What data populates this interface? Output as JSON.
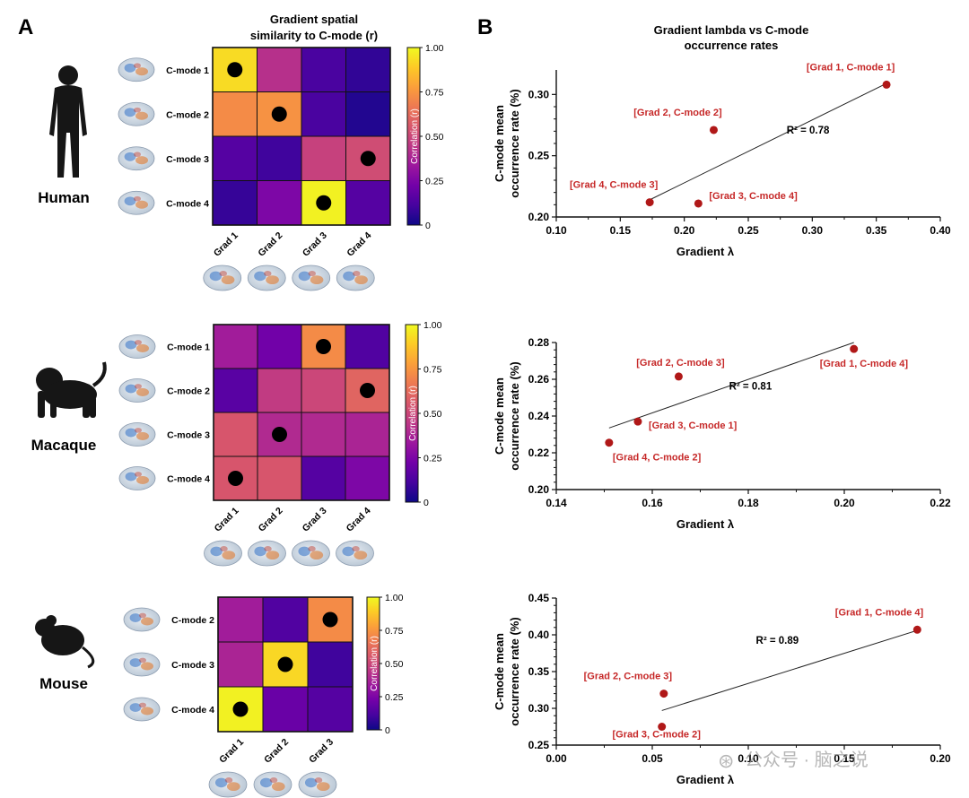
{
  "panels": {
    "a": "A",
    "b": "B"
  },
  "heatmap_title": [
    "Gradient spatial",
    "similarity to C-mode (r)"
  ],
  "scatter_title": [
    "Gradient lambda vs C-mode",
    "occurrence rates"
  ],
  "species": {
    "human": "Human",
    "macaque": "Macaque",
    "mouse": "Mouse"
  },
  "colorbar": {
    "label": "Correlation (r)",
    "ticks": [
      "1.00",
      "0.75",
      "0.50",
      "0.25",
      "0"
    ]
  },
  "watermark": {
    "symbol": "⊛",
    "text": "公众号 · 脑之说"
  },
  "colors": {
    "scale": [
      "#0d0887",
      "#46039f",
      "#7201a8",
      "#9c179e",
      "#bd3786",
      "#d8576b",
      "#ed7953",
      "#fb9f3a",
      "#fdca26",
      "#f0f921"
    ],
    "dot": "#b01818",
    "label_red": "#c62828",
    "fit": "#222222"
  },
  "chart_data": [
    {
      "type": "heatmap",
      "species": "Human",
      "rows": [
        "C-mode 1",
        "C-mode 2",
        "C-mode 3",
        "C-mode 4"
      ],
      "cols": [
        "Grad 1",
        "Grad 2",
        "Grad 3",
        "Grad 4"
      ],
      "values": [
        [
          0.93,
          0.42,
          0.12,
          0.07
        ],
        [
          0.72,
          0.74,
          0.12,
          0.04
        ],
        [
          0.15,
          0.1,
          0.48,
          0.52
        ],
        [
          0.08,
          0.25,
          0.98,
          0.15
        ]
      ],
      "markers": [
        [
          0,
          0
        ],
        [
          1,
          1
        ],
        [
          2,
          3
        ],
        [
          3,
          2
        ]
      ],
      "range": [
        0,
        1
      ]
    },
    {
      "type": "heatmap",
      "species": "Macaque",
      "rows": [
        "C-mode 1",
        "C-mode 2",
        "C-mode 3",
        "C-mode 4"
      ],
      "cols": [
        "Grad 1",
        "Grad 2",
        "Grad 3",
        "Grad 4"
      ],
      "values": [
        [
          0.35,
          0.22,
          0.72,
          0.14
        ],
        [
          0.16,
          0.46,
          0.5,
          0.6
        ],
        [
          0.55,
          0.4,
          0.4,
          0.38
        ],
        [
          0.55,
          0.55,
          0.15,
          0.25
        ]
      ],
      "markers": [
        [
          0,
          2
        ],
        [
          1,
          3
        ],
        [
          2,
          1
        ],
        [
          3,
          0
        ]
      ],
      "range": [
        0,
        1
      ]
    },
    {
      "type": "heatmap",
      "species": "Mouse",
      "rows": [
        "C-mode 2",
        "C-mode 3",
        "C-mode 4"
      ],
      "cols": [
        "Grad 1",
        "Grad 2",
        "Grad 3"
      ],
      "values": [
        [
          0.35,
          0.14,
          0.72
        ],
        [
          0.38,
          0.92,
          0.1
        ],
        [
          0.98,
          0.2,
          0.15
        ]
      ],
      "markers": [
        [
          0,
          2
        ],
        [
          1,
          1
        ],
        [
          2,
          0
        ]
      ],
      "range": [
        0,
        1
      ]
    },
    {
      "type": "scatter",
      "species": "Human",
      "xlabel": "Gradient λ",
      "ylabel": [
        "C-mode mean",
        "occurrence rate (%)"
      ],
      "xlim": [
        0.1,
        0.4
      ],
      "ylim": [
        0.2,
        0.32
      ],
      "xticks": [
        0.1,
        0.15,
        0.2,
        0.25,
        0.3,
        0.35,
        0.4
      ],
      "yticks": [
        0.2,
        0.25,
        0.3
      ],
      "xtick_labels": [
        "0.10",
        "0.15",
        "0.20",
        "0.25",
        "0.30",
        "0.35",
        "0.40"
      ],
      "ytick_labels": [
        "0.20",
        "0.25",
        "0.30"
      ],
      "points": [
        {
          "label": "[Grad 1, C-mode 1]",
          "x": 0.358,
          "y": 0.308,
          "pos": "above-left"
        },
        {
          "label": "[Grad 2, C-mode 2]",
          "x": 0.223,
          "y": 0.271,
          "pos": "above-left"
        },
        {
          "label": "[Grad 3, C-mode 4]",
          "x": 0.211,
          "y": 0.211,
          "pos": "right-up"
        },
        {
          "label": "[Grad 4, C-mode 3]",
          "x": 0.173,
          "y": 0.212,
          "pos": "above-left"
        }
      ],
      "fit": [
        [
          0.173,
          0.214
        ],
        [
          0.358,
          0.309
        ]
      ],
      "r2": "R² = 0.78",
      "r2_at": [
        0.28,
        0.268
      ]
    },
    {
      "type": "scatter",
      "species": "Macaque",
      "xlabel": "Gradient λ",
      "ylabel": [
        "C-mode mean",
        "occurrence rate (%)"
      ],
      "xlim": [
        0.14,
        0.22
      ],
      "ylim": [
        0.2,
        0.28
      ],
      "xticks": [
        0.14,
        0.16,
        0.18,
        0.2,
        0.22
      ],
      "yticks": [
        0.2,
        0.22,
        0.24,
        0.26,
        0.28
      ],
      "xtick_labels": [
        "0.14",
        "0.16",
        "0.18",
        "0.20",
        "0.22"
      ],
      "ytick_labels": [
        "0.20",
        "0.22",
        "0.24",
        "0.26",
        "0.28"
      ],
      "points": [
        {
          "label": "[Grad 1, C-mode 4]",
          "x": 0.202,
          "y": 0.2765,
          "pos": "below-right"
        },
        {
          "label": "[Grad 2, C-mode 3]",
          "x": 0.1655,
          "y": 0.2615,
          "pos": "above-center"
        },
        {
          "label": "[Grad 3, C-mode 1]",
          "x": 0.157,
          "y": 0.237,
          "pos": "right-down"
        },
        {
          "label": "[Grad 4, C-mode 2]",
          "x": 0.151,
          "y": 0.2255,
          "pos": "below-right"
        }
      ],
      "fit": [
        [
          0.151,
          0.2335
        ],
        [
          0.202,
          0.28
        ]
      ],
      "r2": "R² = 0.81",
      "r2_at": [
        0.176,
        0.2545
      ]
    },
    {
      "type": "scatter",
      "species": "Mouse",
      "xlabel": "Gradient λ",
      "ylabel": [
        "C-mode mean",
        "occurrence rate (%)"
      ],
      "xlim": [
        0.0,
        0.2
      ],
      "ylim": [
        0.25,
        0.45
      ],
      "xticks": [
        0.0,
        0.05,
        0.1,
        0.15,
        0.2
      ],
      "yticks": [
        0.25,
        0.3,
        0.35,
        0.4,
        0.45
      ],
      "xtick_labels": [
        "0.00",
        "0.05",
        "0.10",
        "0.15",
        "0.20"
      ],
      "ytick_labels": [
        "0.25",
        "0.30",
        "0.35",
        "0.40",
        "0.45"
      ],
      "points": [
        {
          "label": "[Grad 1, C-mode 4]",
          "x": 0.188,
          "y": 0.407,
          "pos": "above-left"
        },
        {
          "label": "[Grad 2, C-mode 3]",
          "x": 0.056,
          "y": 0.32,
          "pos": "above-left"
        },
        {
          "label": "[Grad 3, C-mode 2]",
          "x": 0.055,
          "y": 0.275,
          "pos": "below-center"
        }
      ],
      "fit": [
        [
          0.055,
          0.297
        ],
        [
          0.188,
          0.406
        ]
      ],
      "r2": "R² = 0.89",
      "r2_at": [
        0.104,
        0.388
      ]
    }
  ]
}
